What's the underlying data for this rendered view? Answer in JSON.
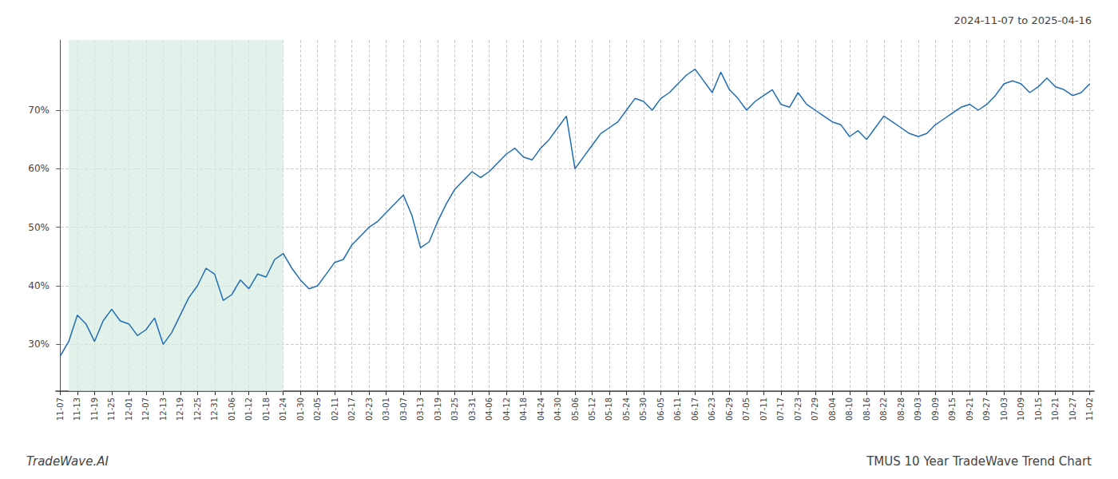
{
  "chart_data": {
    "type": "line",
    "title": "TMUS 10 Year TradeWave Trend Chart",
    "subtitle": "2024-11-07 to 2025-04-16",
    "annotation": "TradeWave.AI",
    "color": "#1f6eb5",
    "grid": true,
    "shaded_region": {
      "start": 1,
      "end": 26,
      "color": "#d6ece1"
    },
    "ylim": [
      22,
      82
    ],
    "yticks": [
      {
        "value": 30,
        "label": "30%"
      },
      {
        "value": 40,
        "label": "40%"
      },
      {
        "value": 50,
        "label": "50%"
      },
      {
        "value": 60,
        "label": "60%"
      },
      {
        "value": 70,
        "label": "70%"
      }
    ],
    "categories": [
      "11-07",
      null,
      "11-13",
      null,
      "11-19",
      null,
      "11-25",
      null,
      "12-01",
      null,
      "12-07",
      null,
      "12-13",
      null,
      "12-19",
      null,
      "12-25",
      null,
      "12-31",
      null,
      "01-06",
      null,
      "01-12",
      null,
      "01-18",
      null,
      "01-24",
      null,
      "01-30",
      null,
      "02-05",
      null,
      "02-11",
      null,
      "02-17",
      null,
      "02-23",
      null,
      "03-01",
      null,
      "03-07",
      null,
      "03-13",
      null,
      "03-19",
      null,
      "03-25",
      null,
      "03-31",
      null,
      "04-06",
      null,
      "04-12",
      null,
      "04-18",
      null,
      "04-24",
      null,
      "04-30",
      null,
      "05-06",
      null,
      "05-12",
      null,
      "05-18",
      null,
      "05-24",
      null,
      "05-30",
      null,
      "06-05",
      null,
      "06-11",
      null,
      "06-17",
      null,
      "06-23",
      null,
      "06-29",
      null,
      "07-05",
      null,
      "07-11",
      null,
      "07-17",
      null,
      "07-23",
      null,
      "07-29",
      null,
      "08-04",
      null,
      "08-10",
      null,
      "08-16",
      null,
      "08-22",
      null,
      "08-28",
      null,
      "09-03",
      null,
      "09-09",
      null,
      "09-15",
      null,
      "09-21",
      null,
      "09-27",
      null,
      "10-03",
      null,
      "10-09",
      null,
      "10-15",
      null,
      "10-21",
      null,
      "10-27",
      null,
      "11-02"
    ],
    "values": [
      28.0,
      30.5,
      35.0,
      33.5,
      30.5,
      34.0,
      36.0,
      34.0,
      33.5,
      31.5,
      32.5,
      34.5,
      30.0,
      32.0,
      35.0,
      38.0,
      40.0,
      43.0,
      42.0,
      37.5,
      38.5,
      41.0,
      39.5,
      42.0,
      41.5,
      44.5,
      45.5,
      43.0,
      41.0,
      39.5,
      40.0,
      42.0,
      44.0,
      44.5,
      47.0,
      48.5,
      50.0,
      51.0,
      52.5,
      54.0,
      55.5,
      52.0,
      46.5,
      47.5,
      51.0,
      54.0,
      56.5,
      58.0,
      59.5,
      58.5,
      59.5,
      61.0,
      62.5,
      63.5,
      62.0,
      61.5,
      63.5,
      65.0,
      67.0,
      69.0,
      60.0,
      62.0,
      64.0,
      66.0,
      67.0,
      68.0,
      70.0,
      72.0,
      71.5,
      70.0,
      72.0,
      73.0,
      74.5,
      76.0,
      77.0,
      75.0,
      73.0,
      76.5,
      73.5,
      72.0,
      70.0,
      71.5,
      72.5,
      73.5,
      71.0,
      70.5,
      73.0,
      71.0,
      70.0,
      69.0,
      68.0,
      67.5,
      65.5,
      66.5,
      65.0,
      67.0,
      69.0,
      68.0,
      67.0,
      66.0,
      65.5,
      66.0,
      67.5,
      68.5,
      69.5,
      70.5,
      71.0,
      70.0,
      71.0,
      72.5,
      74.5,
      75.0,
      74.5,
      73.0,
      74.0,
      75.5,
      74.0,
      73.5,
      72.5,
      73.0,
      74.5
    ]
  }
}
